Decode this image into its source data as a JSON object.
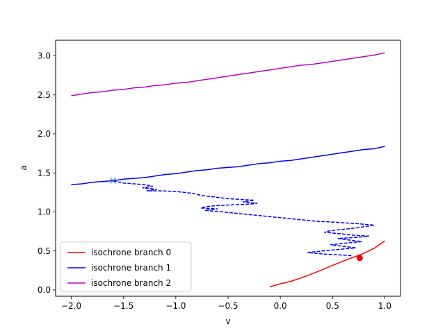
{
  "chart_data": {
    "type": "line",
    "title": "",
    "xlabel": "v",
    "ylabel": "a",
    "xlim": [
      -2.15,
      1.15
    ],
    "ylim": [
      -0.08,
      3.2
    ],
    "xticks": [
      -2.0,
      -1.5,
      -1.0,
      -0.5,
      0.0,
      0.5,
      1.0
    ],
    "xtick_labels": [
      "−2.0",
      "−1.5",
      "−1.0",
      "−0.5",
      "0.0",
      "0.5",
      "1.0"
    ],
    "yticks": [
      0.0,
      0.5,
      1.0,
      1.5,
      2.0,
      2.5,
      3.0
    ],
    "ytick_labels": [
      "0.0",
      "0.5",
      "1.0",
      "1.5",
      "2.0",
      "2.5",
      "3.0"
    ],
    "grid": false,
    "legend_position": "lower-left",
    "series": [
      {
        "name": "isochrone branch 0",
        "color": "#ff0000",
        "style": "solid",
        "x": [
          -0.1,
          0.0,
          0.1,
          0.2,
          0.3,
          0.4,
          0.5,
          0.6,
          0.7,
          0.8,
          0.9,
          1.0
        ],
        "y": [
          0.04,
          0.08,
          0.11,
          0.155,
          0.205,
          0.26,
          0.315,
          0.37,
          0.42,
          0.47,
          0.535,
          0.63
        ]
      },
      {
        "name": "isochrone branch 1",
        "color": "#0000ff",
        "style": "solid",
        "x": [
          -2.0,
          -1.9,
          -1.8,
          -1.7,
          -1.6,
          -1.5,
          -1.4,
          -1.3,
          -1.2,
          -1.1,
          -1.0,
          -0.9,
          -0.8,
          -0.7,
          -0.6,
          -0.5,
          -0.4,
          -0.3,
          -0.2,
          -0.1,
          0.0,
          0.1,
          0.2,
          0.3,
          0.4,
          0.5,
          0.6,
          0.7,
          0.8,
          0.9,
          1.0
        ],
        "y": [
          1.35,
          1.36,
          1.38,
          1.39,
          1.4,
          1.42,
          1.43,
          1.44,
          1.46,
          1.48,
          1.49,
          1.51,
          1.53,
          1.54,
          1.56,
          1.57,
          1.58,
          1.6,
          1.62,
          1.63,
          1.65,
          1.66,
          1.68,
          1.7,
          1.72,
          1.74,
          1.76,
          1.78,
          1.8,
          1.81,
          1.84
        ]
      },
      {
        "name": "isochrone branch 2",
        "color": "#bf00bf",
        "style": "solid",
        "x": [
          -2.0,
          -1.9,
          -1.8,
          -1.7,
          -1.6,
          -1.5,
          -1.4,
          -1.3,
          -1.2,
          -1.1,
          -1.0,
          -0.9,
          -0.8,
          -0.7,
          -0.6,
          -0.5,
          -0.4,
          -0.3,
          -0.2,
          -0.1,
          0.0,
          0.1,
          0.2,
          0.3,
          0.4,
          0.5,
          0.6,
          0.7,
          0.8,
          0.9,
          1.0
        ],
        "y": [
          2.49,
          2.51,
          2.53,
          2.54,
          2.56,
          2.57,
          2.59,
          2.6,
          2.62,
          2.63,
          2.65,
          2.66,
          2.68,
          2.7,
          2.72,
          2.74,
          2.76,
          2.78,
          2.8,
          2.82,
          2.84,
          2.86,
          2.88,
          2.89,
          2.91,
          2.93,
          2.95,
          2.97,
          2.99,
          3.01,
          3.04
        ]
      }
    ],
    "dashed_path": {
      "color": "#0000ff",
      "style": "dashed",
      "x": [
        -1.6,
        -1.5,
        -1.4,
        -1.3,
        -1.22,
        -1.32,
        -1.18,
        -1.28,
        -1.12,
        -0.98,
        -0.85,
        -0.75,
        -0.62,
        -0.5,
        -0.38,
        -0.25,
        -0.36,
        -0.22,
        -0.3,
        -0.48,
        -0.62,
        -0.7,
        -0.76,
        -0.6,
        -0.72,
        -0.55,
        -0.4,
        -0.25,
        -0.1,
        0.05,
        0.2,
        0.35,
        0.5,
        0.62,
        0.74,
        0.82,
        0.9,
        0.75,
        0.62,
        0.48,
        0.42,
        0.58,
        0.72,
        0.85,
        0.7,
        0.55,
        0.66,
        0.78,
        0.62,
        0.48,
        0.6,
        0.72,
        0.56,
        0.4,
        0.26,
        0.42,
        0.56,
        0.68
      ],
      "y": [
        1.4,
        1.37,
        1.36,
        1.35,
        1.33,
        1.31,
        1.29,
        1.27,
        1.27,
        1.26,
        1.24,
        1.21,
        1.19,
        1.17,
        1.16,
        1.15,
        1.13,
        1.11,
        1.1,
        1.09,
        1.08,
        1.07,
        1.05,
        1.04,
        1.02,
        1.0,
        0.98,
        0.96,
        0.94,
        0.92,
        0.9,
        0.88,
        0.87,
        0.86,
        0.85,
        0.84,
        0.83,
        0.8,
        0.78,
        0.76,
        0.74,
        0.72,
        0.7,
        0.69,
        0.67,
        0.66,
        0.64,
        0.62,
        0.6,
        0.58,
        0.56,
        0.54,
        0.52,
        0.5,
        0.48,
        0.46,
        0.45,
        0.44
      ]
    },
    "markers": [
      {
        "type": "x",
        "color": "#1f77b4",
        "x": -1.6,
        "y": 1.4
      },
      {
        "type": "dot",
        "color": "#ff0000",
        "x": 0.76,
        "y": 0.41
      }
    ]
  }
}
